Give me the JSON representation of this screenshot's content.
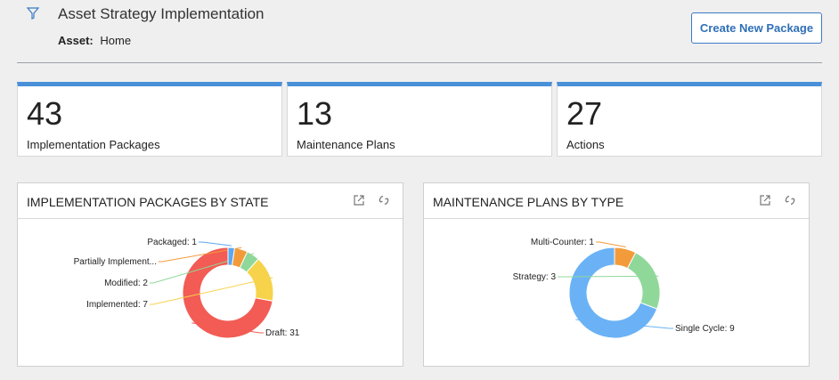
{
  "header": {
    "title": "Asset Strategy Implementation",
    "asset_label": "Asset:",
    "asset_value": "Home",
    "create_button": "Create New Package",
    "filter_icon": "filter-icon"
  },
  "kpis": [
    {
      "value": "43",
      "label": "Implementation Packages"
    },
    {
      "value": "13",
      "label": "Maintenance Plans"
    },
    {
      "value": "27",
      "label": "Actions"
    }
  ],
  "colors": {
    "accent": "#4a90d9",
    "button_text": "#2f6fb8"
  },
  "cards": [
    {
      "title": "IMPLEMENTATION PACKAGES BY STATE",
      "icons": [
        "open-external-icon",
        "refresh-icon"
      ]
    },
    {
      "title": "MAINTENANCE PLANS BY TYPE",
      "icons": [
        "open-external-icon",
        "refresh-icon"
      ]
    }
  ],
  "chart_data": [
    {
      "type": "pie",
      "donut": true,
      "title": "IMPLEMENTATION PACKAGES BY STATE",
      "slices": [
        {
          "label": "Draft",
          "value": 31,
          "color": "#f25c54"
        },
        {
          "label": "Implemented",
          "value": 7,
          "color": "#f6d34b"
        },
        {
          "label": "Modified",
          "value": 2,
          "color": "#8fd89a"
        },
        {
          "label": "Partially Implement...",
          "value": 2,
          "color": "#f39b3a"
        },
        {
          "label": "Packaged",
          "value": 1,
          "color": "#5aa7f2"
        }
      ],
      "slice_labels": [
        "Draft: 31",
        "Implemented: 7",
        "Modified: 2",
        "Partially Implement...",
        "Packaged: 1"
      ]
    },
    {
      "type": "pie",
      "donut": true,
      "title": "MAINTENANCE PLANS BY TYPE",
      "slices": [
        {
          "label": "Single Cycle",
          "value": 9,
          "color": "#6ab2f5"
        },
        {
          "label": "Strategy",
          "value": 3,
          "color": "#8fd89a"
        },
        {
          "label": "Multi-Counter",
          "value": 1,
          "color": "#f39b3a"
        }
      ],
      "slice_labels": [
        "Single Cycle: 9",
        "Strategy: 3",
        "Multi-Counter: 1"
      ]
    }
  ]
}
